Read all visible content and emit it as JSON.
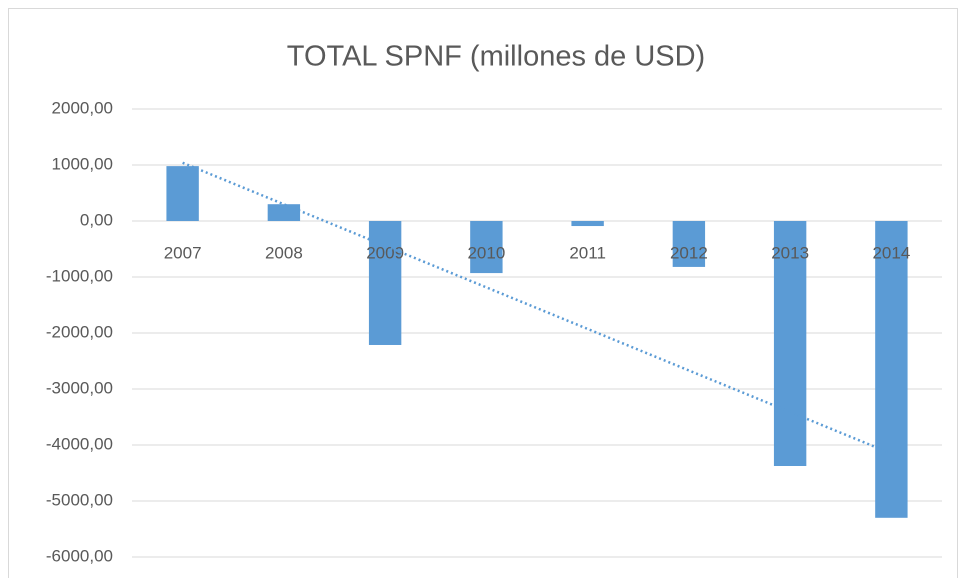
{
  "chart_data": {
    "type": "bar",
    "title": "TOTAL SPNF (millones de USD)",
    "categories": [
      "2007",
      "2008",
      "2009",
      "2010",
      "2011",
      "2012",
      "2013",
      "2014"
    ],
    "values": [
      980,
      300,
      -2214,
      -930,
      -90,
      -820,
      -4375,
      -5300
    ],
    "color": "#5b9bd5",
    "trendline": "linear",
    "ylim": [
      -6000,
      2000
    ],
    "yticks": [
      {
        "value": -6000,
        "label": "-6000,00"
      },
      {
        "value": -5000,
        "label": "-5000,00"
      },
      {
        "value": -4000,
        "label": "-4000,00"
      },
      {
        "value": -3000,
        "label": "-3000,00"
      },
      {
        "value": -2000,
        "label": "-2000,00"
      },
      {
        "value": -1000,
        "label": "-1000,00"
      },
      {
        "value": 0,
        "label": "0,00"
      },
      {
        "value": 1000,
        "label": "1000,00"
      },
      {
        "value": 2000,
        "label": "2000,00"
      }
    ],
    "grid": true
  }
}
